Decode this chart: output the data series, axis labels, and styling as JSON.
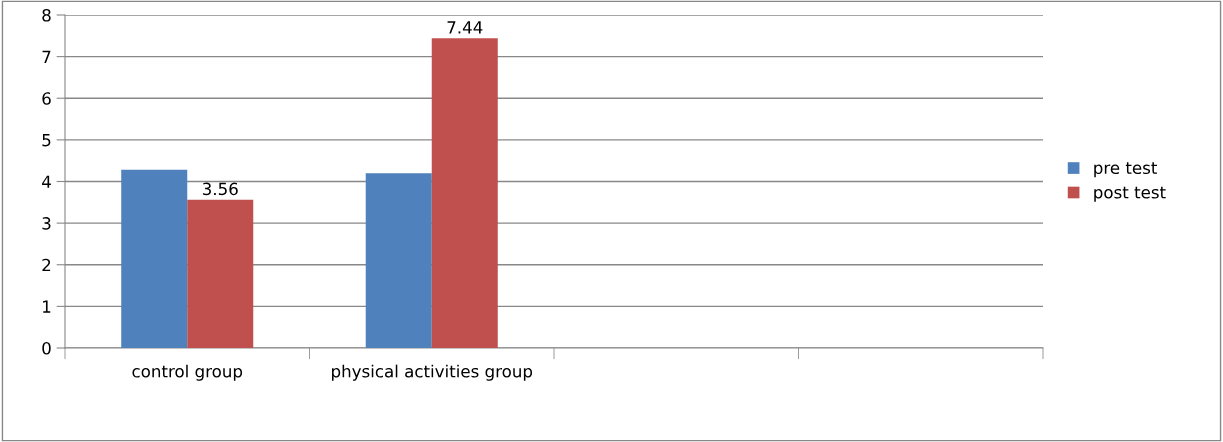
{
  "chart_data": {
    "type": "bar",
    "categories": [
      "control group",
      "physical activities group",
      null,
      null
    ],
    "series": [
      {
        "name": "pre test",
        "color": "#4f81bd",
        "values": [
          4.28,
          4.2,
          null,
          null
        ]
      },
      {
        "name": "post test",
        "color": "#c0504d",
        "values": [
          3.56,
          7.44,
          null,
          null
        ],
        "value_labels": [
          "3.56",
          "7.44",
          null,
          null
        ]
      }
    ],
    "ylim": [
      0,
      8
    ],
    "yticks": [
      0,
      1,
      2,
      3,
      4,
      5,
      6,
      7,
      8
    ],
    "grid": "y",
    "legend": "right"
  }
}
